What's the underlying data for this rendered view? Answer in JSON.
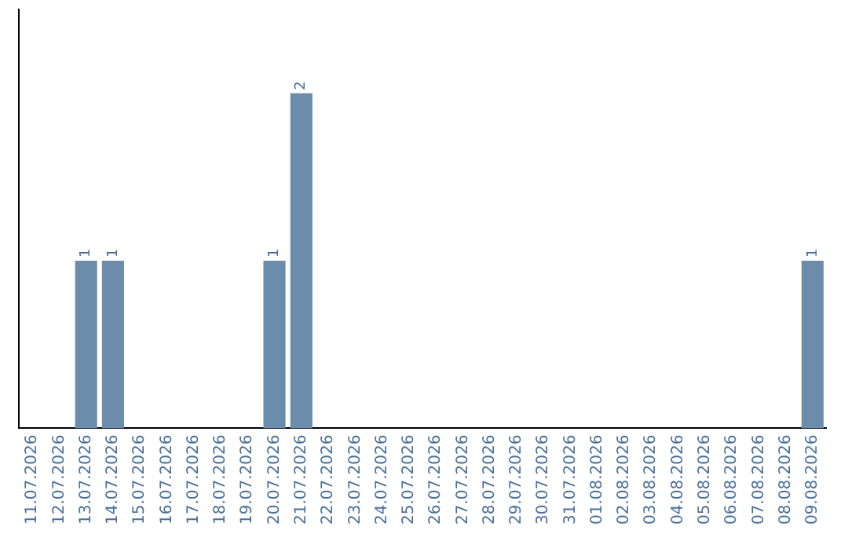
{
  "chart_data": {
    "type": "bar",
    "categories": [
      "11.07.2026",
      "12.07.2026",
      "13.07.2026",
      "14.07.2026",
      "15.07.2026",
      "16.07.2026",
      "17.07.2026",
      "18.07.2026",
      "19.07.2026",
      "20.07.2026",
      "21.07.2026",
      "22.07.2026",
      "23.07.2026",
      "24.07.2026",
      "25.07.2026",
      "26.07.2026",
      "27.07.2026",
      "28.07.2026",
      "29.07.2026",
      "30.07.2026",
      "31.07.2026",
      "01.08.2026",
      "02.08.2026",
      "03.08.2026",
      "04.08.2026",
      "05.08.2026",
      "06.08.2026",
      "07.08.2026",
      "08.08.2026",
      "09.08.2026"
    ],
    "values": [
      0,
      0,
      1,
      1,
      0,
      0,
      0,
      0,
      0,
      1,
      2,
      0,
      0,
      0,
      0,
      0,
      0,
      0,
      0,
      0,
      0,
      0,
      0,
      0,
      0,
      0,
      0,
      0,
      0,
      1
    ],
    "value_labels": [
      null,
      null,
      "1",
      "1",
      null,
      null,
      null,
      null,
      null,
      "1",
      "2",
      null,
      null,
      null,
      null,
      null,
      null,
      null,
      null,
      null,
      null,
      null,
      null,
      null,
      null,
      null,
      null,
      null,
      null,
      "1"
    ],
    "color": "#6b8cab",
    "grid": false,
    "legend": false
  }
}
